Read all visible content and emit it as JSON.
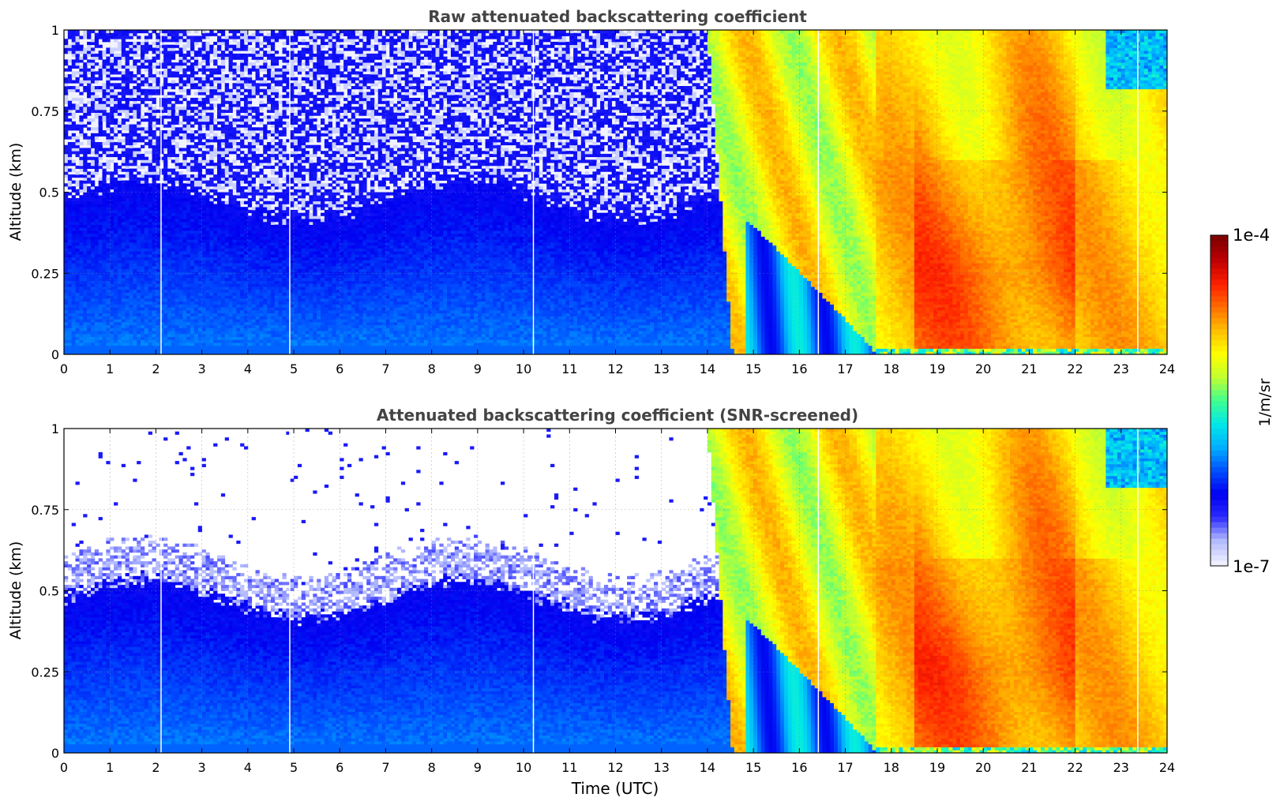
{
  "colorbar": {
    "label": "1/m/sr",
    "max_label": "1e-4",
    "min_label": "1e-7",
    "scale": "log",
    "min_value": 1e-07,
    "max_value": 0.0001,
    "colors": [
      "#eef0ff",
      "#b0b8ff",
      "#2a2aff",
      "#0000f0",
      "#0050ff",
      "#00b0ff",
      "#00e8e8",
      "#40ff90",
      "#c0ff30",
      "#ffff00",
      "#ffc000",
      "#ff7000",
      "#ff2000",
      "#c00000",
      "#800000"
    ]
  },
  "chart_data": [
    {
      "type": "heatmap",
      "title": "Raw attenuated backscattering coefficient",
      "xlabel": "",
      "ylabel": "Altitude (km)",
      "xlim": [
        0,
        24
      ],
      "ylim": [
        0,
        1
      ],
      "x_ticks": [
        "0",
        "1",
        "2",
        "3",
        "4",
        "5",
        "6",
        "7",
        "8",
        "9",
        "10",
        "11",
        "12",
        "13",
        "14",
        "15",
        "16",
        "17",
        "18",
        "19",
        "20",
        "21",
        "22",
        "23",
        "24"
      ],
      "y_ticks": [
        "0",
        "0.25",
        "0.5",
        "0.75",
        "1"
      ],
      "grid": true,
      "screened": false,
      "gap_times_utc": [
        2.1,
        4.9,
        10.2,
        16.4,
        23.35
      ],
      "boundary_layer_top_km": 0.45,
      "transition_start_utc": 14.0,
      "transition_end_utc": 17.7,
      "max_backscatter_period_utc": [
        18.5,
        22.0
      ]
    },
    {
      "type": "heatmap",
      "title": "Attenuated backscattering coefficient (SNR-screened)",
      "xlabel": "Time (UTC)",
      "ylabel": "Altitude (km)",
      "xlim": [
        0,
        24
      ],
      "ylim": [
        0,
        1
      ],
      "x_ticks": [
        "0",
        "1",
        "2",
        "3",
        "4",
        "5",
        "6",
        "7",
        "8",
        "9",
        "10",
        "11",
        "12",
        "13",
        "14",
        "15",
        "16",
        "17",
        "18",
        "19",
        "20",
        "21",
        "22",
        "23",
        "24"
      ],
      "y_ticks": [
        "0",
        "0.25",
        "0.5",
        "0.75",
        "1"
      ],
      "grid": true,
      "screened": true,
      "gap_times_utc": [
        2.1,
        4.9,
        10.2,
        16.4,
        23.35
      ],
      "boundary_layer_top_km": 0.45,
      "transition_start_utc": 14.0,
      "transition_end_utc": 17.7,
      "max_backscatter_period_utc": [
        18.5,
        22.0
      ]
    }
  ]
}
